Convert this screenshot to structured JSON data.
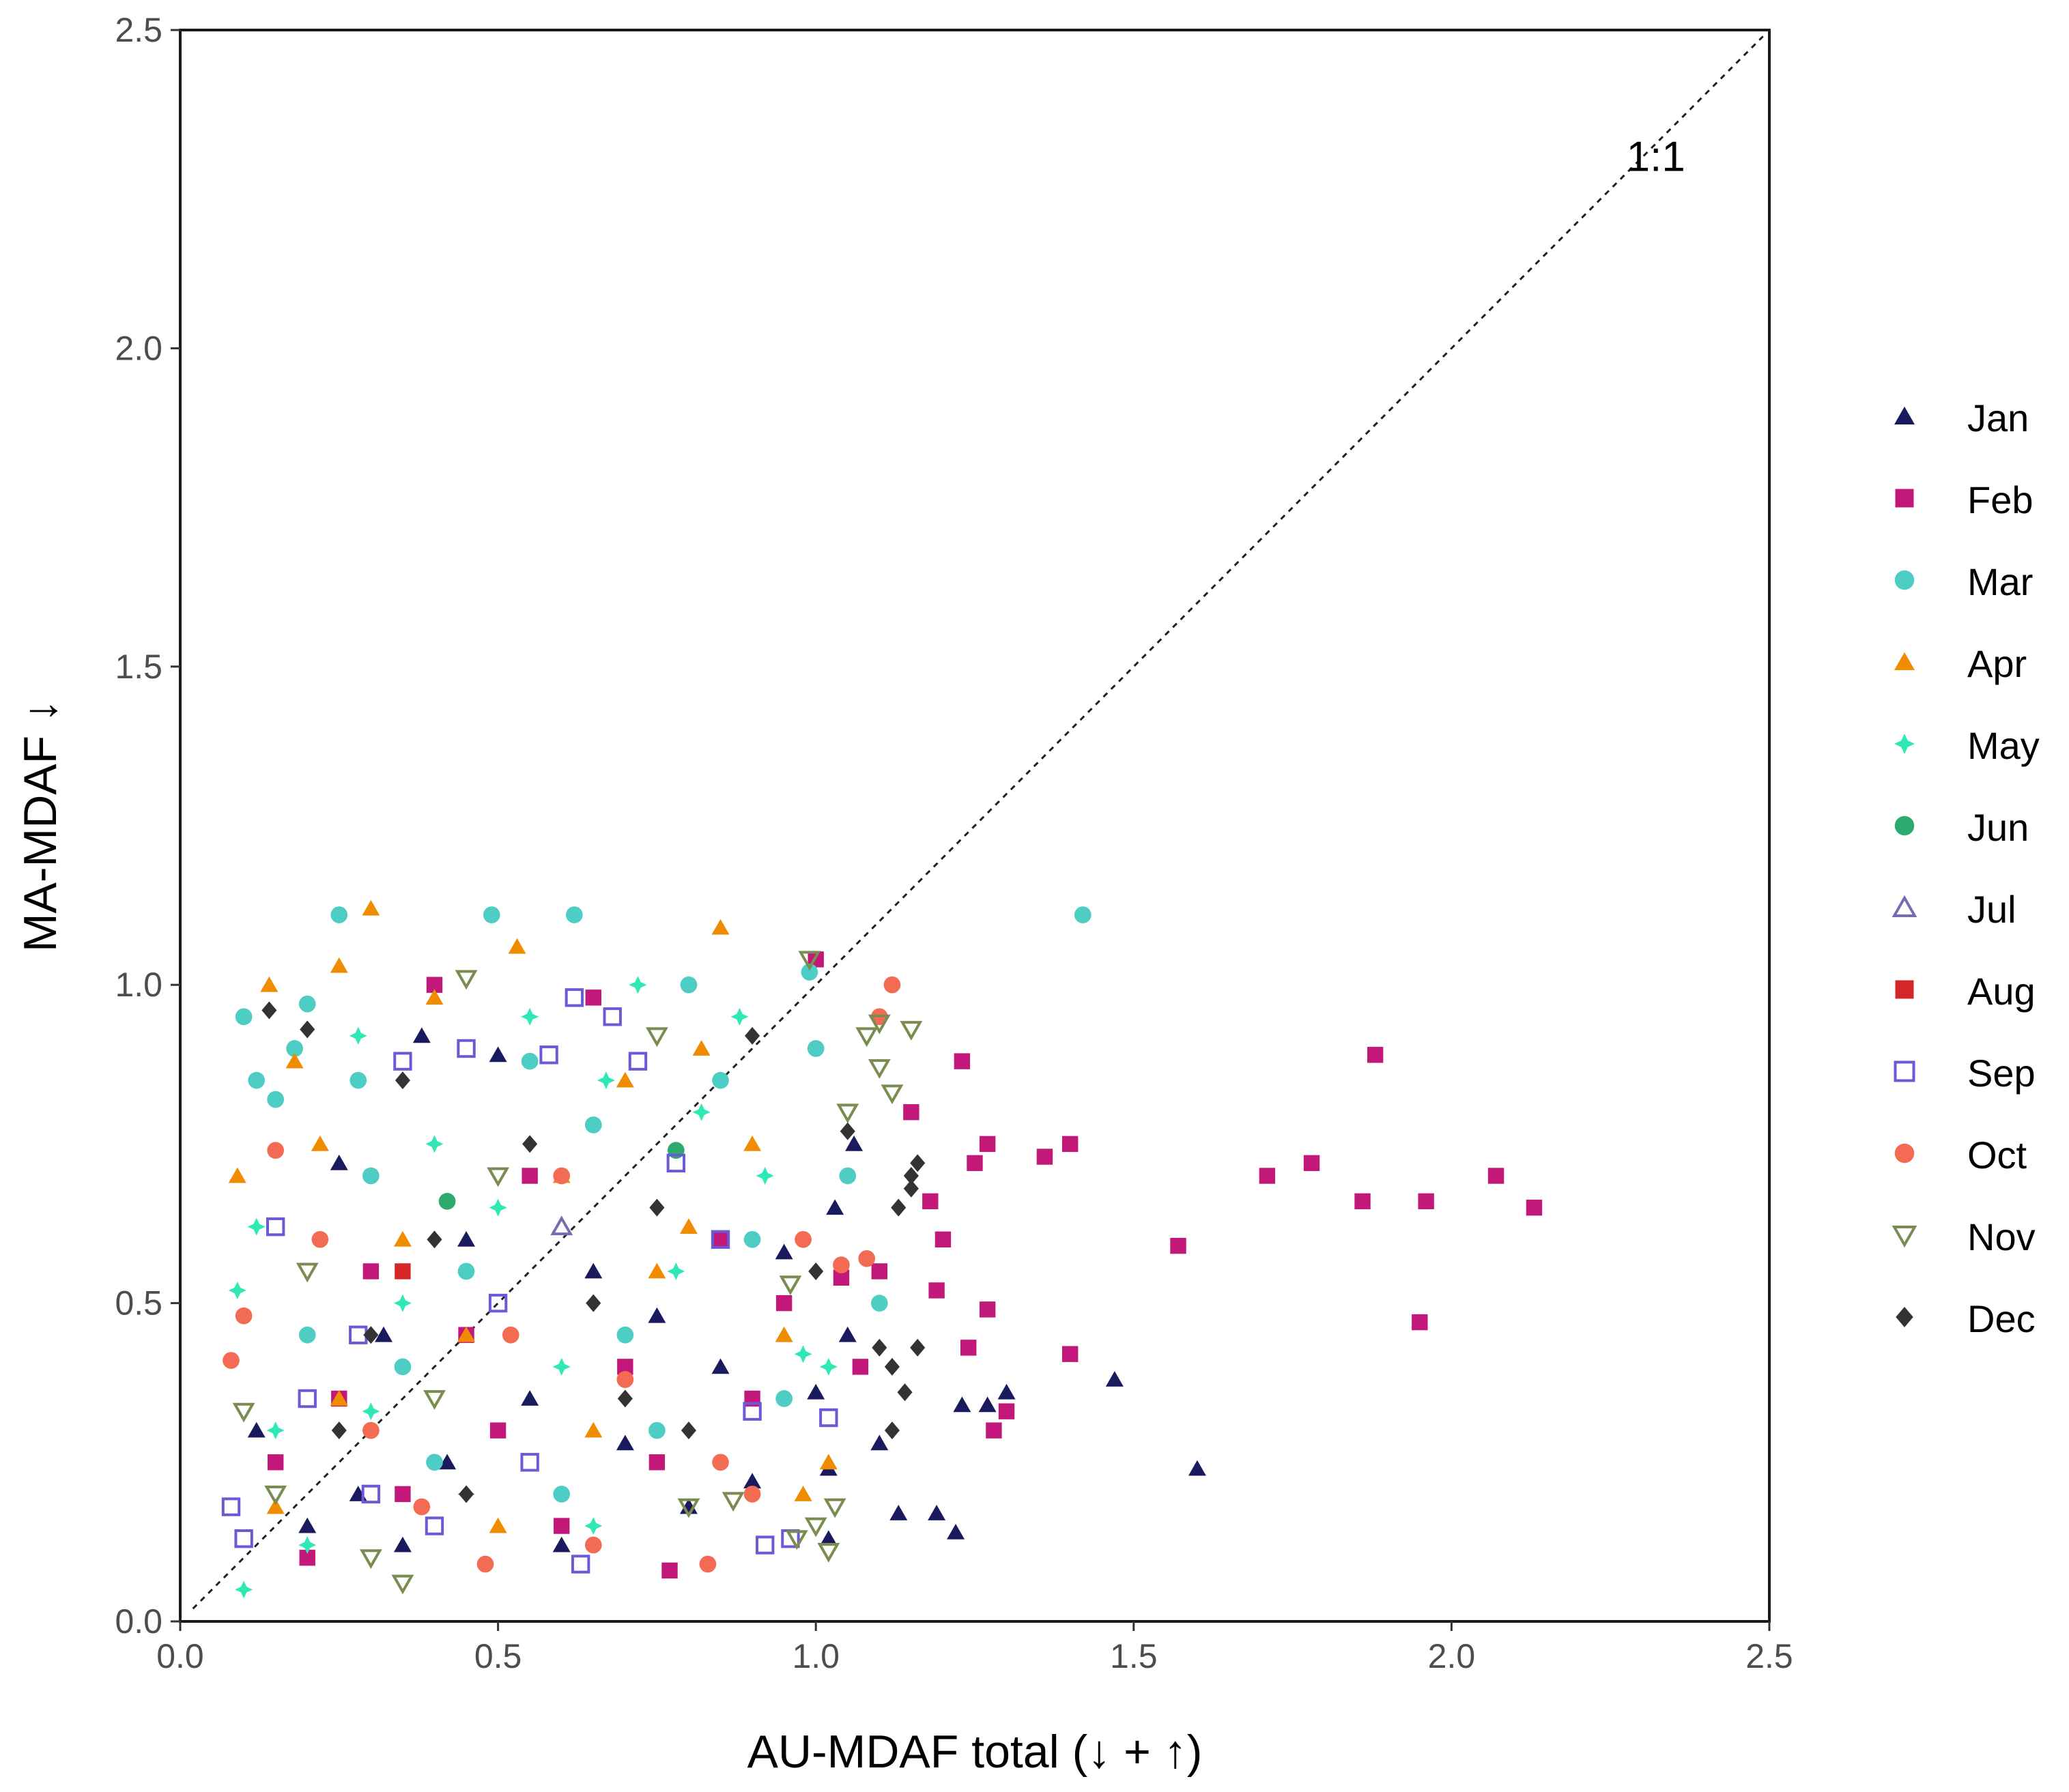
{
  "chart_data": {
    "type": "scatter",
    "title": "",
    "xlabel": "AU-MDAF total (↓ + ↑)",
    "ylabel": "MA-MDAF ↓",
    "xlim": [
      0,
      2.5
    ],
    "ylim": [
      0,
      2.5
    ],
    "xticks": [
      "0.0",
      "0.5",
      "1.0",
      "1.5",
      "2.0",
      "2.5"
    ],
    "yticks": [
      "0.0",
      "0.5",
      "1.0",
      "1.5",
      "2.0",
      "2.5"
    ],
    "grid": false,
    "legend_position": "right",
    "reference_line": {
      "label": "1:1",
      "style": "dashed",
      "from": [
        0.02,
        0.02
      ],
      "to": [
        2.49,
        2.49
      ],
      "label_at": [
        2.3,
        2.3
      ]
    },
    "series": [
      {
        "name": "Jan",
        "marker": "triangle-filled",
        "color": "#1a1a5e",
        "points": [
          [
            0.12,
            0.3
          ],
          [
            0.2,
            0.15
          ],
          [
            0.25,
            0.72
          ],
          [
            0.28,
            0.2
          ],
          [
            0.32,
            0.45
          ],
          [
            0.38,
            0.92
          ],
          [
            0.42,
            0.25
          ],
          [
            0.45,
            0.6
          ],
          [
            0.5,
            0.89
          ],
          [
            0.55,
            0.35
          ],
          [
            0.6,
            0.12
          ],
          [
            0.65,
            0.55
          ],
          [
            0.7,
            0.28
          ],
          [
            0.75,
            0.48
          ],
          [
            0.8,
            0.18
          ],
          [
            0.85,
            0.4
          ],
          [
            0.9,
            0.22
          ],
          [
            0.95,
            0.58
          ],
          [
            1.0,
            0.36
          ],
          [
            1.02,
            0.24
          ],
          [
            1.03,
            0.65
          ],
          [
            1.05,
            0.45
          ],
          [
            1.06,
            0.75
          ],
          [
            1.1,
            0.28
          ],
          [
            1.13,
            0.17
          ],
          [
            1.19,
            0.17
          ],
          [
            1.22,
            0.14
          ],
          [
            1.23,
            0.34
          ],
          [
            1.27,
            0.34
          ],
          [
            1.3,
            0.36
          ],
          [
            1.47,
            0.38
          ],
          [
            1.6,
            0.24
          ],
          [
            1.02,
            0.13
          ],
          [
            0.35,
            0.12
          ]
        ]
      },
      {
        "name": "Feb",
        "marker": "square-filled",
        "color": "#c2187a",
        "points": [
          [
            0.15,
            0.25
          ],
          [
            0.2,
            0.1
          ],
          [
            0.25,
            0.35
          ],
          [
            0.3,
            0.55
          ],
          [
            0.35,
            0.2
          ],
          [
            0.4,
            1.0
          ],
          [
            0.45,
            0.45
          ],
          [
            0.5,
            0.3
          ],
          [
            0.55,
            0.7
          ],
          [
            0.6,
            0.15
          ],
          [
            0.65,
            0.98
          ],
          [
            0.7,
            0.4
          ],
          [
            0.75,
            0.25
          ],
          [
            0.77,
            0.08
          ],
          [
            0.85,
            0.6
          ],
          [
            0.9,
            0.35
          ],
          [
            0.95,
            0.5
          ],
          [
            1.0,
            1.04
          ],
          [
            1.04,
            0.54
          ],
          [
            1.07,
            0.4
          ],
          [
            1.1,
            0.55
          ],
          [
            1.15,
            0.8
          ],
          [
            1.18,
            0.66
          ],
          [
            1.2,
            0.6
          ],
          [
            1.23,
            0.88
          ],
          [
            1.24,
            0.43
          ],
          [
            1.25,
            0.72
          ],
          [
            1.27,
            0.75
          ],
          [
            1.27,
            0.49
          ],
          [
            1.3,
            0.33
          ],
          [
            1.36,
            0.73
          ],
          [
            1.4,
            0.75
          ],
          [
            1.4,
            0.42
          ],
          [
            1.57,
            0.59
          ],
          [
            1.71,
            0.7
          ],
          [
            1.78,
            0.72
          ],
          [
            1.86,
            0.66
          ],
          [
            1.88,
            0.89
          ],
          [
            1.95,
            0.47
          ],
          [
            1.96,
            0.66
          ],
          [
            2.07,
            0.7
          ],
          [
            2.13,
            0.65
          ],
          [
            1.28,
            0.3
          ],
          [
            1.19,
            0.52
          ]
        ]
      },
      {
        "name": "Mar",
        "marker": "circle-filled",
        "color": "#4ecdc4",
        "points": [
          [
            0.1,
            0.95
          ],
          [
            0.12,
            0.85
          ],
          [
            0.15,
            0.82
          ],
          [
            0.18,
            0.9
          ],
          [
            0.2,
            0.97
          ],
          [
            0.25,
            1.11
          ],
          [
            0.28,
            0.85
          ],
          [
            0.3,
            0.7
          ],
          [
            0.35,
            0.4
          ],
          [
            0.4,
            0.25
          ],
          [
            0.45,
            0.55
          ],
          [
            0.49,
            1.11
          ],
          [
            0.55,
            0.88
          ],
          [
            0.62,
            1.11
          ],
          [
            0.65,
            0.78
          ],
          [
            0.7,
            0.45
          ],
          [
            0.75,
            0.3
          ],
          [
            0.8,
            1.0
          ],
          [
            0.85,
            0.85
          ],
          [
            0.9,
            0.6
          ],
          [
            0.95,
            0.35
          ],
          [
            0.99,
            1.02
          ],
          [
            1.0,
            0.9
          ],
          [
            1.05,
            0.7
          ],
          [
            1.1,
            0.5
          ],
          [
            1.42,
            1.11
          ],
          [
            0.2,
            0.45
          ],
          [
            0.6,
            0.2
          ]
        ]
      },
      {
        "name": "Apr",
        "marker": "triangle-filled",
        "color": "#f08c00",
        "points": [
          [
            0.09,
            0.7
          ],
          [
            0.14,
            1.0
          ],
          [
            0.18,
            0.88
          ],
          [
            0.22,
            0.75
          ],
          [
            0.25,
            1.03
          ],
          [
            0.3,
            1.12
          ],
          [
            0.35,
            0.6
          ],
          [
            0.4,
            0.98
          ],
          [
            0.45,
            0.45
          ],
          [
            0.53,
            1.06
          ],
          [
            0.6,
            0.7
          ],
          [
            0.65,
            0.3
          ],
          [
            0.7,
            0.85
          ],
          [
            0.75,
            0.55
          ],
          [
            0.82,
            0.9
          ],
          [
            0.85,
            1.09
          ],
          [
            0.9,
            0.75
          ],
          [
            0.95,
            0.45
          ],
          [
            0.98,
            0.2
          ],
          [
            1.02,
            0.25
          ],
          [
            0.25,
            0.35
          ],
          [
            0.5,
            0.15
          ],
          [
            0.8,
            0.62
          ],
          [
            0.15,
            0.18
          ]
        ]
      },
      {
        "name": "May",
        "marker": "star-filled",
        "color": "#2ee8b6",
        "points": [
          [
            0.09,
            0.52
          ],
          [
            0.1,
            0.05
          ],
          [
            0.12,
            0.62
          ],
          [
            0.15,
            0.3
          ],
          [
            0.2,
            0.12
          ],
          [
            0.28,
            0.92
          ],
          [
            0.35,
            0.5
          ],
          [
            0.4,
            0.75
          ],
          [
            0.45,
            0.2
          ],
          [
            0.5,
            0.65
          ],
          [
            0.55,
            0.95
          ],
          [
            0.6,
            0.4
          ],
          [
            0.67,
            0.85
          ],
          [
            0.72,
            1.0
          ],
          [
            0.78,
            0.55
          ],
          [
            0.82,
            0.8
          ],
          [
            0.88,
            0.95
          ],
          [
            0.92,
            0.7
          ],
          [
            0.98,
            0.42
          ],
          [
            1.02,
            0.4
          ],
          [
            0.3,
            0.33
          ],
          [
            0.65,
            0.15
          ]
        ]
      },
      {
        "name": "Jun",
        "marker": "circle-filled",
        "color": "#2eaa6e",
        "points": [
          [
            0.42,
            0.66
          ],
          [
            0.78,
            0.74
          ]
        ]
      },
      {
        "name": "Jul",
        "marker": "triangle-open",
        "color": "#7a6bb0",
        "points": [
          [
            0.6,
            0.62
          ]
        ]
      },
      {
        "name": "Aug",
        "marker": "square-filled",
        "color": "#d62728",
        "points": [
          [
            0.35,
            0.55
          ]
        ]
      },
      {
        "name": "Sep",
        "marker": "square-open",
        "color": "#6a5ad5",
        "points": [
          [
            0.08,
            0.18
          ],
          [
            0.1,
            0.13
          ],
          [
            0.15,
            0.62
          ],
          [
            0.2,
            0.35
          ],
          [
            0.3,
            0.2
          ],
          [
            0.35,
            0.88
          ],
          [
            0.4,
            0.15
          ],
          [
            0.45,
            0.9
          ],
          [
            0.5,
            0.5
          ],
          [
            0.58,
            0.89
          ],
          [
            0.62,
            0.98
          ],
          [
            0.63,
            0.09
          ],
          [
            0.68,
            0.95
          ],
          [
            0.72,
            0.88
          ],
          [
            0.78,
            0.72
          ],
          [
            0.85,
            0.6
          ],
          [
            0.9,
            0.33
          ],
          [
            0.92,
            0.12
          ],
          [
            0.96,
            0.13
          ],
          [
            1.02,
            0.32
          ],
          [
            0.55,
            0.25
          ],
          [
            0.28,
            0.45
          ]
        ]
      },
      {
        "name": "Oct",
        "marker": "circle-filled",
        "color": "#f26b52",
        "points": [
          [
            0.08,
            0.41
          ],
          [
            0.1,
            0.48
          ],
          [
            0.15,
            0.74
          ],
          [
            0.22,
            0.6
          ],
          [
            0.3,
            0.3
          ],
          [
            0.38,
            0.18
          ],
          [
            0.48,
            0.09
          ],
          [
            0.52,
            0.45
          ],
          [
            0.6,
            0.7
          ],
          [
            0.7,
            0.38
          ],
          [
            0.83,
            0.09
          ],
          [
            0.9,
            0.2
          ],
          [
            0.98,
            0.6
          ],
          [
            1.04,
            0.56
          ],
          [
            1.08,
            0.57
          ],
          [
            1.1,
            0.95
          ],
          [
            1.12,
            1.0
          ],
          [
            0.85,
            0.25
          ],
          [
            0.65,
            0.12
          ]
        ]
      },
      {
        "name": "Nov",
        "marker": "triangle-down-open",
        "color": "#7a8c50",
        "points": [
          [
            0.1,
            0.33
          ],
          [
            0.15,
            0.2
          ],
          [
            0.2,
            0.55
          ],
          [
            0.3,
            0.1
          ],
          [
            0.35,
            0.06
          ],
          [
            0.4,
            0.35
          ],
          [
            0.45,
            1.01
          ],
          [
            0.5,
            0.7
          ],
          [
            0.75,
            0.92
          ],
          [
            0.8,
            0.18
          ],
          [
            0.87,
            0.19
          ],
          [
            0.97,
            0.13
          ],
          [
            0.99,
            1.04
          ],
          [
            1.0,
            0.15
          ],
          [
            1.02,
            0.11
          ],
          [
            1.03,
            0.18
          ],
          [
            1.05,
            0.8
          ],
          [
            1.08,
            0.92
          ],
          [
            1.1,
            0.87
          ],
          [
            1.12,
            0.83
          ],
          [
            1.15,
            0.93
          ],
          [
            1.1,
            0.94
          ],
          [
            0.96,
            0.53
          ]
        ]
      },
      {
        "name": "Dec",
        "marker": "diamond-filled",
        "color": "#333333",
        "points": [
          [
            0.14,
            0.96
          ],
          [
            0.2,
            0.93
          ],
          [
            0.25,
            0.3
          ],
          [
            0.3,
            0.45
          ],
          [
            0.35,
            0.85
          ],
          [
            0.4,
            0.6
          ],
          [
            0.45,
            0.2
          ],
          [
            0.55,
            0.75
          ],
          [
            0.65,
            0.5
          ],
          [
            0.7,
            0.35
          ],
          [
            0.75,
            0.65
          ],
          [
            0.8,
            0.3
          ],
          [
            0.9,
            0.92
          ],
          [
            1.0,
            0.55
          ],
          [
            1.05,
            0.77
          ],
          [
            1.1,
            0.43
          ],
          [
            1.13,
            0.65
          ],
          [
            1.15,
            0.68
          ],
          [
            1.15,
            0.7
          ],
          [
            1.16,
            0.72
          ],
          [
            1.16,
            0.43
          ],
          [
            1.12,
            0.4
          ],
          [
            1.14,
            0.36
          ],
          [
            1.12,
            0.3
          ]
        ]
      }
    ]
  }
}
